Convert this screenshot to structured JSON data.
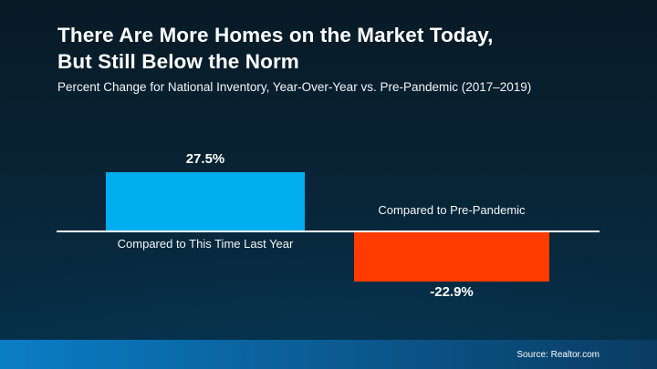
{
  "slide": {
    "title": "There Are More Homes on the Market Today,\nBut Still Below the Norm",
    "subtitle": "Percent Change for National Inventory, Year-Over-Year vs. Pre-Pandemic (2017–2019)",
    "source": "Source: Realtor.com"
  },
  "colors": {
    "background_top": "#071a26",
    "background_bottom": "#05304a",
    "positive_bar": "#00AEEF",
    "negative_bar": "#FF3B00",
    "axis_line": "#FFFFFF",
    "footer_gradient_left": "#0A7EC6",
    "footer_gradient_right": "#0A3C62",
    "text": "#FFFFFF"
  },
  "chart_data": {
    "type": "bar",
    "title": "There Are More Homes on the Market Today, But Still Below the Norm",
    "subtitle": "Percent Change for National Inventory, Year-Over-Year vs. Pre-Pandemic (2017–2019)",
    "categories": [
      "Compared to This Time Last Year",
      "Compared to Pre-Pandemic"
    ],
    "values": [
      27.5,
      -22.9
    ],
    "value_labels": [
      "27.5%",
      "-22.9%"
    ],
    "unit": "%",
    "baseline": 0,
    "bar_colors": [
      "#00AEEF",
      "#FF3B00"
    ],
    "ylim": [
      -30,
      35
    ],
    "grid": false,
    "legend": false,
    "source": "Source: Realtor.com"
  }
}
